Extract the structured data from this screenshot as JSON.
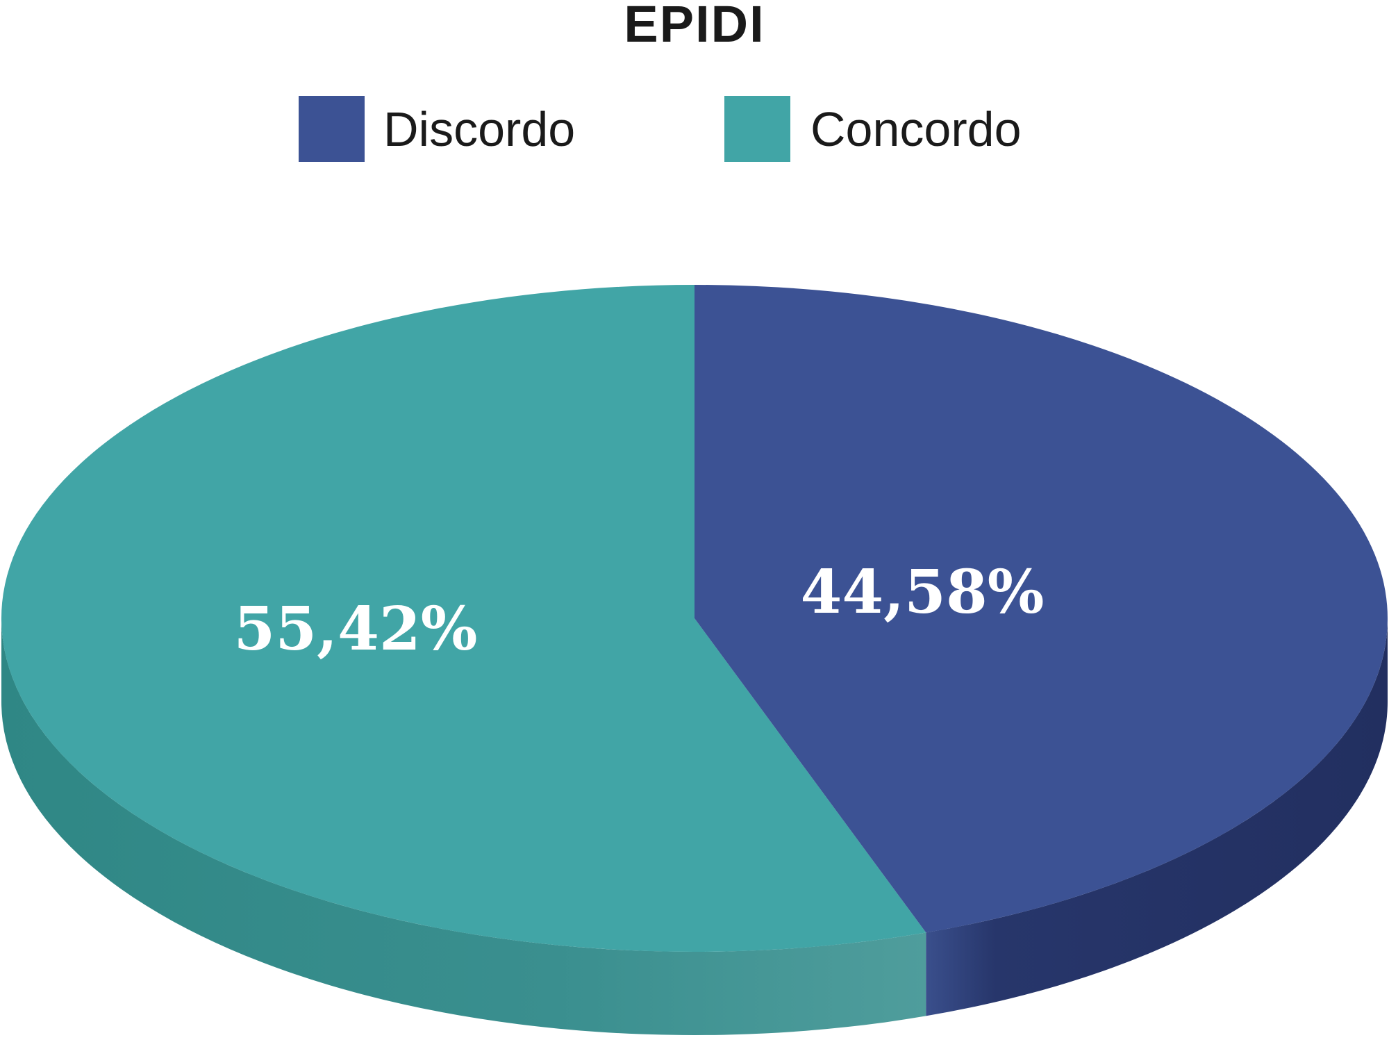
{
  "chart_data": {
    "type": "pie",
    "title": "EPIDI",
    "legend_position": "top",
    "series": [
      {
        "name": "Discordo",
        "value": 44.58,
        "label": "44,58%",
        "color": "#3c5294",
        "side_color": "#25346a"
      },
      {
        "name": "Concordo",
        "value": 55.42,
        "label": "55,42%",
        "color": "#41a5a6",
        "side_color": "#338a89"
      }
    ]
  }
}
